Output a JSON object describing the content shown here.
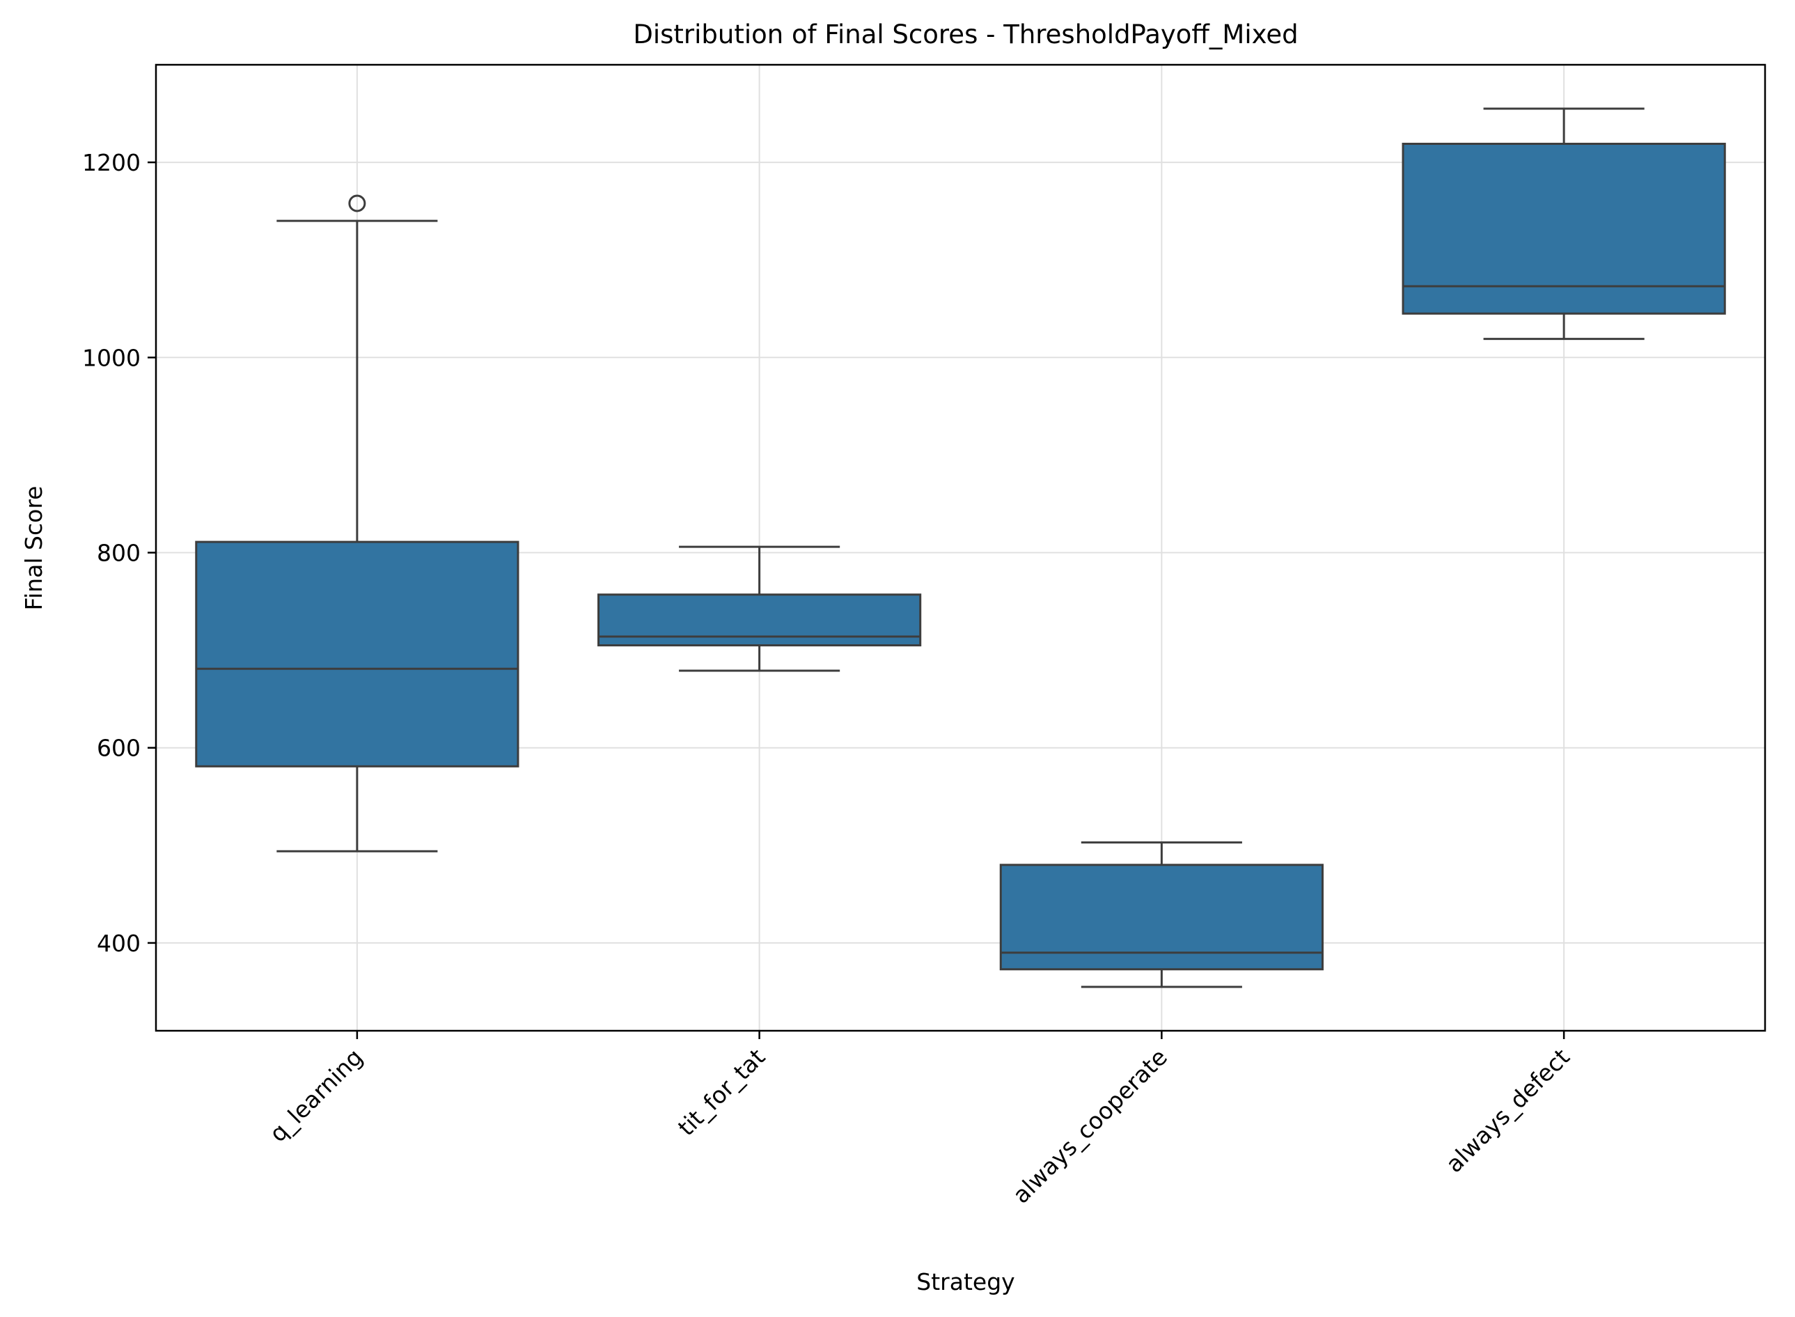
{
  "chart_data": {
    "type": "box",
    "title": "Distribution of Final Scores - ThresholdPayoff_Mixed",
    "xlabel": "Strategy",
    "ylabel": "Final Score",
    "ylim": [
      310,
      1300
    ],
    "yticks": [
      400,
      600,
      800,
      1000,
      1200
    ],
    "grid": true,
    "categories": [
      "q_learning",
      "tit_for_tat",
      "always_cooperate",
      "always_defect"
    ],
    "boxes": [
      {
        "category": "q_learning",
        "whisker_low": 494,
        "q1": 581,
        "median": 681,
        "q3": 811,
        "whisker_high": 1140,
        "outliers": [
          1158
        ]
      },
      {
        "category": "tit_for_tat",
        "whisker_low": 679,
        "q1": 705,
        "median": 714,
        "q3": 757,
        "whisker_high": 806,
        "outliers": []
      },
      {
        "category": "always_cooperate",
        "whisker_low": 355,
        "q1": 373,
        "median": 390,
        "q3": 480,
        "whisker_high": 503,
        "outliers": []
      },
      {
        "category": "always_defect",
        "whisker_low": 1019,
        "q1": 1045,
        "median": 1073,
        "q3": 1219,
        "whisker_high": 1255,
        "outliers": []
      }
    ],
    "colors": {
      "box_fill": "#3274a1",
      "line": "#3d3d3d",
      "grid": "#e0e0e0",
      "axis": "#000000"
    }
  }
}
